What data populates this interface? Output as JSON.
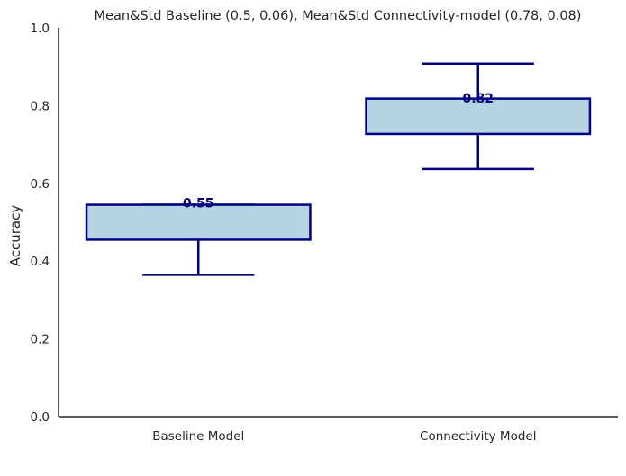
{
  "chart_data": {
    "type": "box",
    "title": "Mean&Std Baseline (0.5, 0.06), Mean&Std Connectivity-model (0.78, 0.08)",
    "xlabel": "",
    "ylabel": "Accuracy",
    "ylim": [
      0,
      1.0
    ],
    "yticks": [
      "0.0",
      "0.2",
      "0.4",
      "0.6",
      "0.8",
      "1.0"
    ],
    "grid": false,
    "colors": {
      "box_fill": "#b5d3e0",
      "box_edge": "#000080",
      "axis": "#262626"
    },
    "categories": [
      "Baseline Model",
      "Connectivity Model"
    ],
    "boxes": [
      {
        "whisker_low": 0.365,
        "q1": 0.455,
        "median": 0.5,
        "q3": 0.545,
        "whisker_high": 0.545,
        "value_label": "0.55",
        "label_value": 0.55
      },
      {
        "whisker_low": 0.637,
        "q1": 0.727,
        "median": 0.78,
        "q3": 0.818,
        "whisker_high": 0.908,
        "value_label": "0.82",
        "label_value": 0.82
      }
    ]
  }
}
